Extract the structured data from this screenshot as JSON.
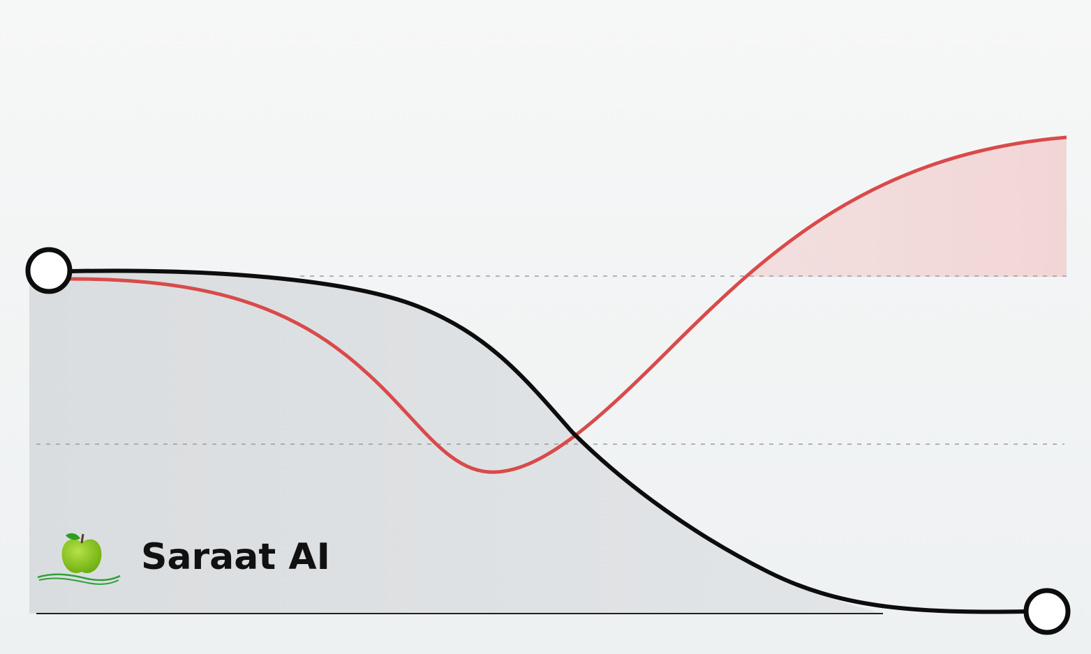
{
  "logo": {
    "text": "Saraat AI"
  }
}
